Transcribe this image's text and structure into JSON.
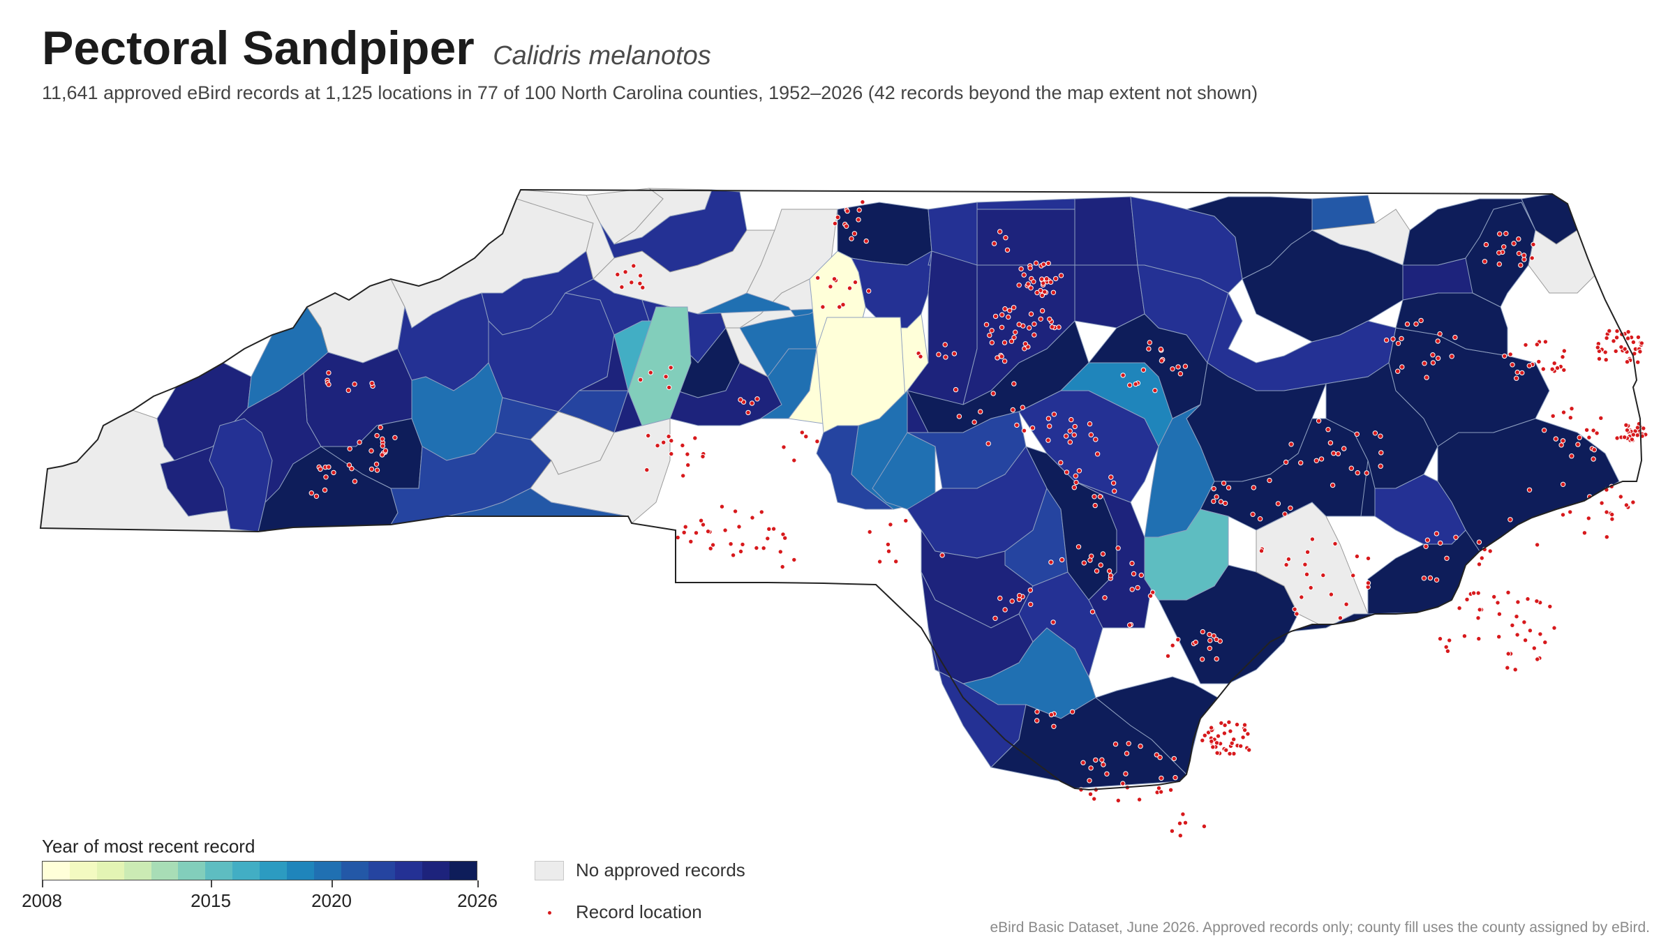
{
  "title": "Pectoral Sandpiper",
  "scientific_name": "Calidris melanotos",
  "subtitle": "11,641 approved eBird records at 1,125 locations in 77 of 100 North Carolina counties, 1952–2026 (42 records beyond the map extent not shown)",
  "legend": {
    "title": "Year of most recent record",
    "ticks": [
      "2008",
      "2015",
      "2020",
      "2026"
    ],
    "no_records_label": "No approved records",
    "record_location_label": "Record location"
  },
  "source": "eBird Basic Dataset, June 2026. Approved records only; county fill uses the county assigned by eBird.",
  "colors": {
    "scale": [
      "#ffffd9",
      "#f3fac1",
      "#e3f4b4",
      "#cbebb4",
      "#a8ddb6",
      "#82cebb",
      "#5ebdc1",
      "#42aec4",
      "#2c9bc1",
      "#1f85bb",
      "#2070b2",
      "#2358a7",
      "#2544a0",
      "#243194",
      "#1d237c",
      "#0e1d5a"
    ],
    "no_records": "#ececec",
    "record_point": "#d7191c"
  }
}
